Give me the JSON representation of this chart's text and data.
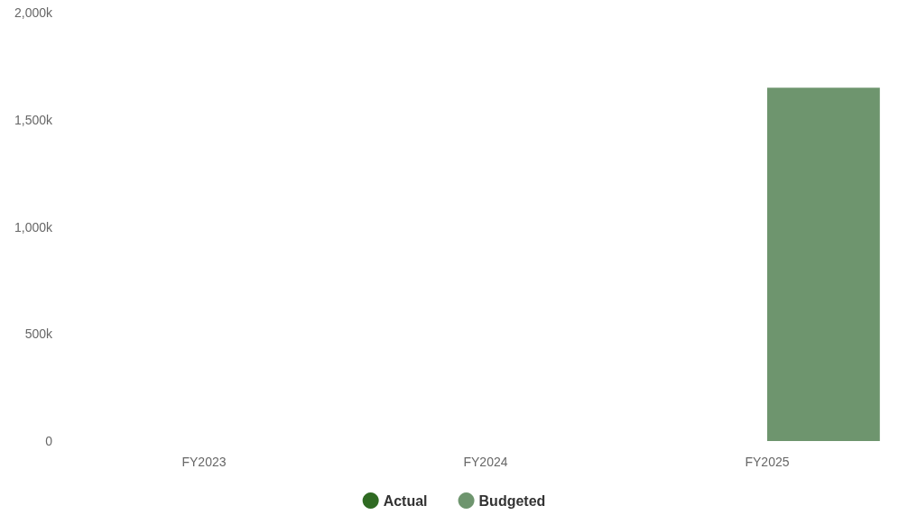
{
  "chart_data": {
    "type": "bar",
    "categories": [
      "FY2023",
      "FY2024",
      "FY2025"
    ],
    "series": [
      {
        "name": "Actual",
        "color": "#2f6a22",
        "values": [
          null,
          null,
          null
        ]
      },
      {
        "name": "Budgeted",
        "color": "#6e956e",
        "values": [
          null,
          null,
          1650
        ]
      }
    ],
    "ylim": [
      0,
      2000
    ],
    "yticks": [
      {
        "value": 0,
        "label": "0"
      },
      {
        "value": 500,
        "label": "500k"
      },
      {
        "value": 1000,
        "label": "1,000k"
      },
      {
        "value": 1500,
        "label": "1,500k"
      },
      {
        "value": 2000,
        "label": "2,000k"
      }
    ],
    "grid": false,
    "legend": "bottom"
  }
}
